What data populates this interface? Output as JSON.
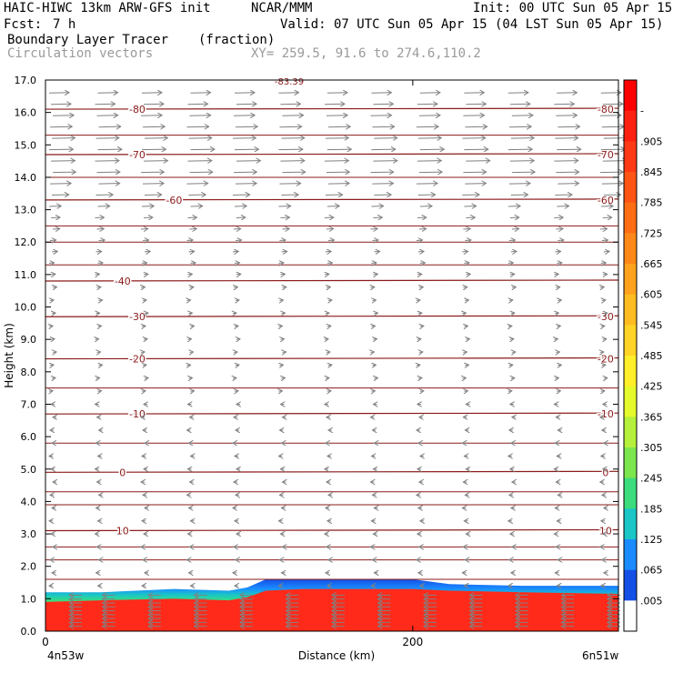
{
  "header": {
    "model": "HAIC-HIWC 13km ARW-GFS init",
    "org": "NCAR/MMM",
    "init": "Init: 00 UTC Sun 05 Apr 15",
    "fcst_label": "Fcst:",
    "fcst_value": "7 h",
    "valid": "Valid: 07 UTC Sun 05 Apr 15 (04 LST Sun 05 Apr 15)",
    "field": "Boundary Layer Tracer",
    "field_units": "(fraction)",
    "vectors": "Circulation vectors",
    "xy": "XY= 259.5, 91.6 to 274.6,110.2"
  },
  "colors": {
    "contour": "#8b1a1a",
    "vector": "#808080",
    "tracer_high": "#ff2a1a"
  },
  "chart_data": {
    "type": "heatmap",
    "ylabel": "Height (km)",
    "xlabel": "Distance (km)",
    "ylim": [
      0,
      17
    ],
    "xlim": [
      0,
      312
    ],
    "y_ticks": [
      "0.0",
      "1.0",
      "2.0",
      "3.0",
      "4.0",
      "5.0",
      "6.0",
      "7.0",
      "8.0",
      "9.0",
      "10.0",
      "11.0",
      "12.0",
      "13.0",
      "14.0",
      "15.0",
      "16.0",
      "17.0"
    ],
    "x_ticks": [
      {
        "value": 0,
        "label": "0"
      },
      {
        "value": 200,
        "label": "200"
      }
    ],
    "x_end_labels": {
      "left": "4n53w",
      "right": "6n51w"
    },
    "colorbar": {
      "labels": [
        "-",
        ".905",
        ".845",
        ".785",
        ".725",
        ".665",
        ".605",
        ".545",
        ".485",
        ".425",
        ".365",
        ".305",
        ".245",
        ".185",
        ".125",
        ".065",
        ".005"
      ],
      "colors": [
        "#ff0000",
        "#ff2010",
        "#ff3a14",
        "#ff5414",
        "#ff6e14",
        "#ff8818",
        "#ffa21e",
        "#ffbc22",
        "#ffd426",
        "#ffee2a",
        "#e4fa2c",
        "#b4f03c",
        "#7ce64e",
        "#3cdc7c",
        "#1ac6c6",
        "#1a8cff",
        "#1450e6",
        "#ffffff"
      ]
    },
    "tracer_boundary": {
      "x": [
        0,
        30,
        70,
        100,
        110,
        120,
        140,
        200,
        220,
        260,
        312
      ],
      "top_km": [
        1.2,
        1.2,
        1.3,
        1.25,
        1.35,
        1.6,
        1.6,
        1.6,
        1.45,
        1.4,
        1.4
      ],
      "saturated_top_km": [
        0.9,
        0.95,
        1.0,
        0.95,
        1.05,
        1.25,
        1.3,
        1.3,
        1.25,
        1.2,
        1.15
      ]
    },
    "temperature_contours": [
      {
        "label": "-80",
        "y_km": 16.1,
        "label_x": [
          50,
          305
        ]
      },
      {
        "label": "-70",
        "y_km": 14.7,
        "label_x": [
          50,
          305
        ]
      },
      {
        "label": "-60",
        "y_km": 13.3,
        "label_x": [
          70,
          305
        ]
      },
      {
        "label": "-40",
        "y_km": 10.8,
        "label_x": [
          42
        ]
      },
      {
        "label": "-30",
        "y_km": 9.7,
        "label_x": [
          50,
          305
        ]
      },
      {
        "label": "-20",
        "y_km": 8.4,
        "label_x": [
          50,
          305
        ]
      },
      {
        "label": "-10",
        "y_km": 6.7,
        "label_x": [
          50,
          305
        ]
      },
      {
        "label": "0",
        "y_km": 4.9,
        "label_x": [
          42,
          305
        ]
      },
      {
        "label": "10",
        "y_km": 3.1,
        "label_x": [
          42,
          305
        ]
      }
    ],
    "top_partial_label": "-83.39",
    "wind_vectors": {
      "x": [
        3,
        28,
        53,
        78,
        103,
        128,
        153,
        178,
        203,
        228,
        253,
        278,
        303
      ],
      "levels": [
        {
          "y_km": 16.6,
          "u": 1.0
        },
        {
          "y_km": 16.25,
          "u": 1.0
        },
        {
          "y_km": 15.9,
          "u": 1.05
        },
        {
          "y_km": 15.55,
          "u": 1.1
        },
        {
          "y_km": 15.2,
          "u": 1.15
        },
        {
          "y_km": 14.85,
          "u": 1.2
        },
        {
          "y_km": 14.5,
          "u": 1.2
        },
        {
          "y_km": 14.15,
          "u": 1.15
        },
        {
          "y_km": 13.8,
          "u": 1.05
        },
        {
          "y_km": 13.45,
          "u": 0.85
        },
        {
          "y_km": 13.1,
          "u": 0.6
        },
        {
          "y_km": 12.75,
          "u": 0.45
        },
        {
          "y_km": 12.4,
          "u": 0.35
        },
        {
          "y_km": 12.05,
          "u": 0.3
        },
        {
          "y_km": 11.7,
          "u": 0.28
        },
        {
          "y_km": 11.35,
          "u": 0.25
        },
        {
          "y_km": 11.0,
          "u": 0.22
        },
        {
          "y_km": 10.6,
          "u": 0.2
        },
        {
          "y_km": 10.2,
          "u": 0.18
        },
        {
          "y_km": 9.8,
          "u": 0.15
        },
        {
          "y_km": 9.4,
          "u": 0.12
        },
        {
          "y_km": 9.0,
          "u": 0.1
        },
        {
          "y_km": 8.6,
          "u": 0.08
        },
        {
          "y_km": 8.2,
          "u": 0.06
        },
        {
          "y_km": 7.8,
          "u": 0.05
        },
        {
          "y_km": 7.4,
          "u": 0.04
        },
        {
          "y_km": 7.0,
          "u": -0.05
        },
        {
          "y_km": 6.6,
          "u": -0.08
        },
        {
          "y_km": 6.2,
          "u": -0.1
        },
        {
          "y_km": 5.8,
          "u": -0.12
        },
        {
          "y_km": 5.4,
          "u": -0.14
        },
        {
          "y_km": 5.0,
          "u": -0.14
        },
        {
          "y_km": 4.6,
          "u": -0.12
        },
        {
          "y_km": 4.2,
          "u": -0.1
        },
        {
          "y_km": 3.8,
          "u": -0.08
        },
        {
          "y_km": 3.4,
          "u": -0.06
        },
        {
          "y_km": 3.0,
          "u": -0.06
        },
        {
          "y_km": 2.6,
          "u": -0.05
        },
        {
          "y_km": 2.2,
          "u": -0.05
        },
        {
          "y_km": 1.8,
          "u": -0.05
        },
        {
          "y_km": 1.4,
          "u": -0.06
        }
      ]
    },
    "bl_vector_columns": [
      10,
      28,
      53,
      78,
      103,
      128,
      153,
      178,
      203,
      228,
      253,
      278,
      303
    ]
  }
}
